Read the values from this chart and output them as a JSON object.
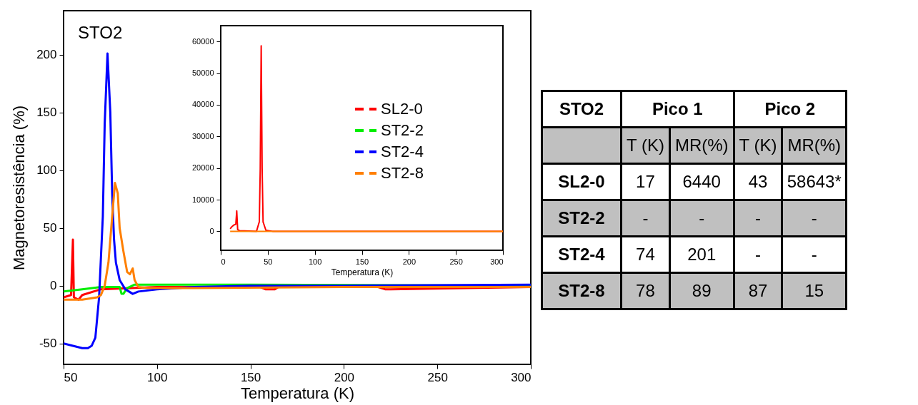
{
  "chart_data": [
    {
      "type": "line",
      "xlabel": "Temperatura (K)",
      "ylabel": "Magnetoresistência (%)",
      "annotations": [
        "STO2"
      ],
      "xlim": [
        50,
        300
      ],
      "ylim": [
        -68,
        238
      ],
      "xticks": [
        50,
        100,
        150,
        200,
        250,
        300
      ],
      "yticks": [
        -50,
        0,
        50,
        100,
        150,
        200
      ],
      "grid": false,
      "legend": false,
      "line_style": "solid",
      "series": [
        {
          "color": "#ff0000",
          "x": [
            50,
            54,
            55,
            55.5,
            58,
            60,
            70,
            100,
            155,
            158,
            163,
            165,
            218,
            222,
            225,
            300
          ],
          "values": [
            -10,
            -8,
            40,
            -10,
            -12,
            -8,
            -3,
            -1,
            -1,
            -3,
            -3,
            -1,
            -1,
            -3,
            -3,
            -1
          ]
        },
        {
          "color": "#00ee00",
          "x": [
            50,
            60,
            70,
            80,
            81,
            82,
            84,
            88,
            100,
            150,
            300
          ],
          "values": [
            -5,
            -3,
            -1,
            -1,
            -7,
            -7,
            -2,
            1,
            1,
            1,
            0
          ]
        },
        {
          "color": "#0000ff",
          "x": [
            50,
            55,
            60,
            63,
            65,
            67,
            69,
            71,
            72,
            73.5,
            75,
            76,
            77,
            78,
            80,
            83,
            87,
            90,
            100,
            120,
            150,
            200,
            300
          ],
          "values": [
            -50,
            -52,
            -54,
            -54,
            -52,
            -45,
            -10,
            60,
            140,
            201,
            150,
            80,
            40,
            20,
            5,
            -3,
            -7,
            -5,
            -3,
            -1,
            0,
            0,
            1
          ]
        },
        {
          "color": "#ff7f00",
          "x": [
            50,
            60,
            68,
            70,
            72,
            74,
            76,
            77.5,
            79,
            80,
            82,
            84,
            85.5,
            87,
            88,
            90,
            95,
            120,
            200,
            300
          ],
          "values": [
            -12,
            -12,
            -10,
            -8,
            0,
            20,
            60,
            89,
            80,
            50,
            30,
            12,
            10,
            15,
            5,
            -1,
            -2,
            -2,
            -1,
            -1
          ]
        }
      ]
    },
    {
      "type": "line",
      "xlabel": "Temperatura (K)",
      "xlim": [
        0,
        300
      ],
      "ylim": [
        -6000,
        65000
      ],
      "xticks": [
        0,
        50,
        100,
        150,
        200,
        250,
        300
      ],
      "yticks": [
        0,
        10000,
        20000,
        30000,
        40000,
        50000,
        60000
      ],
      "grid": false,
      "legend": "right",
      "line_style": "solid",
      "series": [
        {
          "name": "SL2-0",
          "color": "#ff0000",
          "x": [
            10,
            12,
            14,
            16,
            17,
            18,
            20,
            30,
            38,
            41,
            42,
            43,
            44,
            45,
            48,
            55,
            300
          ],
          "values": [
            800,
            1500,
            2000,
            2200,
            6440,
            500,
            200,
            100,
            0,
            3000,
            20000,
            58643,
            20000,
            3000,
            300,
            0,
            0
          ]
        },
        {
          "name": "ST2-2",
          "color": "#00ee00"
        },
        {
          "name": "ST2-4",
          "color": "#0000ff"
        },
        {
          "name": "ST2-8",
          "color": "#ff7f00",
          "x": [
            10,
            300
          ],
          "values": [
            0,
            0
          ]
        }
      ]
    },
    {
      "type": "other",
      "title": "STO2",
      "annotations": [
        "Pico 1",
        "Pico 2"
      ],
      "categories": [
        "T (K)",
        "MR(%)",
        "T (K)",
        "MR(%)"
      ],
      "y_categories": [
        "SL2-0",
        "ST2-2",
        "ST2-4",
        "ST2-8"
      ],
      "cell_labels": [
        [
          "17",
          "6440",
          "43",
          "58643*"
        ],
        [
          "-",
          "-",
          "-",
          "-"
        ],
        [
          "74",
          "201",
          "-",
          "-"
        ],
        [
          "78",
          "89",
          "87",
          "15"
        ]
      ]
    }
  ]
}
